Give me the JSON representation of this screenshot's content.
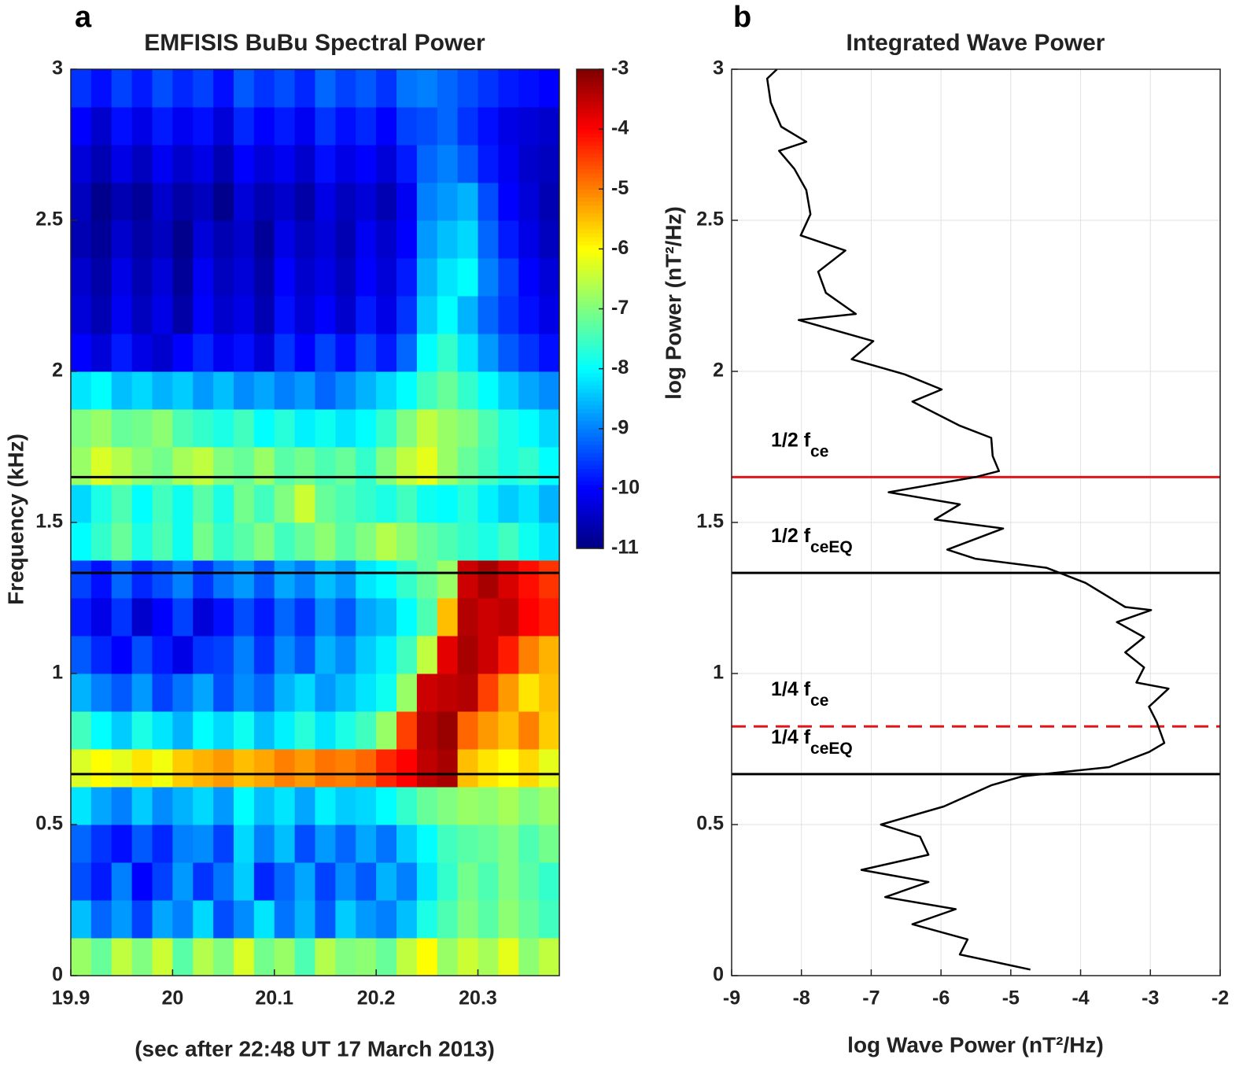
{
  "chart_data": [
    {
      "type": "heatmap",
      "panel_label": "a",
      "title": "EMFISIS BuBu Spectral Power",
      "xlabel": "(sec after 22:48 UT  17 March 2013)",
      "ylabel": "Frequency (kHz)",
      "xlim": [
        19.9,
        20.38
      ],
      "ylim": [
        0,
        3
      ],
      "xticks": [
        19.9,
        20,
        20.1,
        20.2,
        20.3
      ],
      "yticks": [
        0,
        0.5,
        1,
        1.5,
        2,
        2.5,
        3
      ],
      "x": [
        19.91,
        19.93,
        19.95,
        19.97,
        19.99,
        20.01,
        20.03,
        20.05,
        20.07,
        20.09,
        20.11,
        20.13,
        20.15,
        20.17,
        20.19,
        20.21,
        20.23,
        20.25,
        20.27,
        20.29,
        20.31,
        20.33,
        20.35,
        20.37
      ],
      "y": [
        0.0625,
        0.1875,
        0.3125,
        0.4375,
        0.5625,
        0.6875,
        0.8125,
        0.9375,
        1.0625,
        1.1875,
        1.3125,
        1.4375,
        1.5625,
        1.6875,
        1.8125,
        1.9375,
        2.0625,
        2.1875,
        2.3125,
        2.4375,
        2.5625,
        2.6875,
        2.8125,
        2.9375
      ],
      "z": [
        [
          -6.8,
          -7.2,
          -6.5,
          -7.0,
          -6.4,
          -7.3,
          -6.6,
          -7.0,
          -6.3,
          -7.1,
          -6.8,
          -7.4,
          -6.6,
          -7.0,
          -6.9,
          -7.2,
          -6.5,
          -6.0,
          -6.8,
          -6.4,
          -6.7,
          -6.2,
          -6.9,
          -6.5
        ],
        [
          -8.5,
          -9.2,
          -8.8,
          -9.5,
          -8.7,
          -9.0,
          -8.3,
          -9.4,
          -8.9,
          -8.2,
          -9.1,
          -8.6,
          -9.3,
          -8.4,
          -8.8,
          -9.0,
          -8.5,
          -7.8,
          -7.4,
          -7.0,
          -7.3,
          -6.9,
          -7.2,
          -7.5
        ],
        [
          -9.4,
          -9.8,
          -9.0,
          -10.0,
          -9.5,
          -8.8,
          -9.6,
          -9.1,
          -8.4,
          -9.7,
          -9.2,
          -8.7,
          -9.5,
          -8.9,
          -9.3,
          -8.6,
          -9.0,
          -8.2,
          -7.6,
          -7.1,
          -7.4,
          -7.0,
          -7.3,
          -7.6
        ],
        [
          -9.2,
          -9.6,
          -9.9,
          -9.3,
          -9.7,
          -9.0,
          -8.9,
          -9.5,
          -8.3,
          -9.0,
          -8.5,
          -9.4,
          -8.8,
          -9.2,
          -8.7,
          -9.1,
          -8.4,
          -8.0,
          -7.5,
          -7.3,
          -7.2,
          -7.0,
          -7.4,
          -7.1
        ],
        [
          -8.2,
          -8.7,
          -9.0,
          -8.4,
          -8.9,
          -8.6,
          -8.3,
          -8.8,
          -8.0,
          -8.5,
          -8.2,
          -8.7,
          -8.1,
          -8.4,
          -8.3,
          -8.0,
          -7.6,
          -7.2,
          -7.0,
          -6.8,
          -6.9,
          -6.7,
          -7.0,
          -6.8
        ],
        [
          -6.3,
          -6.0,
          -6.2,
          -5.8,
          -6.1,
          -5.6,
          -5.4,
          -5.2,
          -5.5,
          -5.3,
          -5.0,
          -5.2,
          -4.9,
          -5.0,
          -4.8,
          -4.3,
          -4.0,
          -3.5,
          -3.3,
          -5.5,
          -5.8,
          -6.0,
          -5.7,
          -6.2
        ],
        [
          -7.5,
          -8.0,
          -8.4,
          -7.8,
          -8.2,
          -8.6,
          -8.0,
          -8.3,
          -7.9,
          -8.5,
          -8.1,
          -7.7,
          -8.2,
          -7.8,
          -7.5,
          -6.8,
          -4.5,
          -3.4,
          -3.2,
          -4.8,
          -5.2,
          -5.5,
          -5.0,
          -5.6
        ],
        [
          -8.6,
          -9.0,
          -9.3,
          -8.8,
          -9.5,
          -9.1,
          -8.7,
          -9.4,
          -8.9,
          -9.2,
          -8.6,
          -8.3,
          -8.8,
          -8.5,
          -8.2,
          -7.9,
          -6.8,
          -3.6,
          -3.5,
          -3.4,
          -4.5,
          -5.2,
          -5.8,
          -5.5
        ],
        [
          -9.3,
          -9.7,
          -10.0,
          -9.4,
          -9.8,
          -10.2,
          -9.6,
          -9.5,
          -9.0,
          -9.6,
          -8.9,
          -9.3,
          -8.6,
          -8.9,
          -8.4,
          -8.1,
          -7.5,
          -6.5,
          -3.8,
          -3.3,
          -3.6,
          -4.2,
          -5.0,
          -5.4
        ],
        [
          -9.8,
          -10.2,
          -9.6,
          -10.4,
          -10.0,
          -9.5,
          -10.3,
          -9.9,
          -9.4,
          -9.8,
          -9.2,
          -9.6,
          -8.9,
          -9.3,
          -8.7,
          -8.5,
          -8.0,
          -7.4,
          -5.5,
          -3.4,
          -3.6,
          -3.5,
          -4.0,
          -4.2
        ],
        [
          -9.5,
          -9.9,
          -9.2,
          -9.7,
          -9.4,
          -9.0,
          -9.6,
          -9.1,
          -8.8,
          -9.3,
          -8.7,
          -9.0,
          -8.5,
          -8.8,
          -8.2,
          -8.0,
          -7.6,
          -7.2,
          -6.8,
          -3.6,
          -3.3,
          -3.7,
          -4.1,
          -4.4
        ],
        [
          -8.0,
          -7.6,
          -7.2,
          -7.8,
          -7.4,
          -7.9,
          -7.1,
          -7.6,
          -7.3,
          -7.0,
          -7.5,
          -7.2,
          -6.9,
          -7.3,
          -7.0,
          -6.6,
          -6.9,
          -7.2,
          -7.4,
          -7.6,
          -7.8,
          -7.5,
          -7.9,
          -8.2
        ],
        [
          -8.3,
          -7.8,
          -7.4,
          -8.0,
          -7.5,
          -7.9,
          -7.3,
          -7.8,
          -7.1,
          -7.5,
          -7.0,
          -6.4,
          -7.2,
          -7.4,
          -7.6,
          -7.8,
          -7.5,
          -7.9,
          -8.0,
          -7.7,
          -8.1,
          -8.4,
          -8.2,
          -8.6
        ],
        [
          -6.8,
          -6.3,
          -6.6,
          -6.9,
          -7.1,
          -6.7,
          -6.5,
          -7.0,
          -7.2,
          -6.8,
          -7.3,
          -7.1,
          -7.4,
          -7.2,
          -7.6,
          -7.0,
          -6.5,
          -6.2,
          -6.8,
          -7.2,
          -7.5,
          -7.8,
          -7.6,
          -8.0
        ],
        [
          -7.0,
          -6.8,
          -7.2,
          -7.1,
          -6.9,
          -7.4,
          -7.6,
          -7.8,
          -7.5,
          -8.0,
          -7.7,
          -8.1,
          -7.9,
          -8.2,
          -8.0,
          -7.6,
          -7.0,
          -6.5,
          -6.8,
          -7.0,
          -7.4,
          -7.8,
          -8.0,
          -8.3
        ],
        [
          -8.2,
          -8.0,
          -8.5,
          -8.3,
          -8.6,
          -8.4,
          -8.8,
          -8.5,
          -8.9,
          -8.7,
          -9.0,
          -8.8,
          -9.2,
          -8.9,
          -8.6,
          -8.3,
          -8.0,
          -7.5,
          -7.2,
          -7.6,
          -8.0,
          -8.4,
          -8.7,
          -8.9
        ],
        [
          -10.0,
          -10.3,
          -9.8,
          -10.2,
          -10.4,
          -10.0,
          -9.7,
          -10.1,
          -9.9,
          -10.3,
          -9.6,
          -10.0,
          -9.5,
          -9.9,
          -9.4,
          -9.8,
          -9.2,
          -8.0,
          -7.6,
          -8.2,
          -8.8,
          -9.3,
          -9.6,
          -9.9
        ],
        [
          -10.3,
          -10.6,
          -10.1,
          -10.5,
          -10.2,
          -10.7,
          -10.0,
          -10.4,
          -10.2,
          -10.6,
          -9.9,
          -10.3,
          -10.0,
          -10.4,
          -9.8,
          -10.2,
          -9.6,
          -8.4,
          -8.0,
          -8.6,
          -9.2,
          -9.6,
          -9.9,
          -10.2
        ],
        [
          -10.4,
          -10.7,
          -10.2,
          -10.6,
          -10.3,
          -10.8,
          -10.1,
          -10.5,
          -10.3,
          -10.7,
          -10.0,
          -10.4,
          -10.2,
          -10.5,
          -10.0,
          -10.3,
          -9.8,
          -8.6,
          -8.2,
          -8.0,
          -9.0,
          -9.5,
          -10.0,
          -10.3
        ],
        [
          -10.6,
          -10.8,
          -10.4,
          -10.7,
          -10.5,
          -10.9,
          -10.3,
          -10.6,
          -10.4,
          -10.8,
          -10.2,
          -10.5,
          -10.3,
          -10.6,
          -10.1,
          -10.4,
          -10.0,
          -8.8,
          -8.5,
          -8.3,
          -9.2,
          -9.8,
          -10.2,
          -10.5
        ],
        [
          -10.5,
          -10.9,
          -10.6,
          -10.8,
          -10.4,
          -10.7,
          -10.5,
          -10.9,
          -10.3,
          -10.6,
          -10.4,
          -10.7,
          -10.2,
          -10.5,
          -10.3,
          -10.6,
          -10.1,
          -9.0,
          -8.8,
          -8.6,
          -9.4,
          -10.0,
          -10.3,
          -10.6
        ],
        [
          -10.3,
          -10.6,
          -10.2,
          -10.5,
          -10.1,
          -10.4,
          -10.2,
          -10.6,
          -10.0,
          -10.3,
          -10.1,
          -10.4,
          -9.9,
          -10.2,
          -10.0,
          -10.3,
          -9.8,
          -9.2,
          -9.0,
          -9.3,
          -9.8,
          -10.1,
          -10.4,
          -10.5
        ],
        [
          -10.0,
          -10.4,
          -9.9,
          -10.2,
          -9.8,
          -10.1,
          -9.9,
          -10.3,
          -9.7,
          -10.0,
          -9.8,
          -10.1,
          -9.6,
          -9.9,
          -9.7,
          -10.0,
          -9.5,
          -9.4,
          -9.2,
          -9.6,
          -9.9,
          -10.2,
          -10.3,
          -10.4
        ],
        [
          -9.6,
          -9.9,
          -9.5,
          -9.8,
          -9.4,
          -9.7,
          -9.5,
          -9.9,
          -9.3,
          -9.6,
          -9.4,
          -9.7,
          -9.2,
          -9.5,
          -9.3,
          -9.6,
          -9.1,
          -9.0,
          -9.2,
          -9.4,
          -9.6,
          -9.8,
          -9.9,
          -10.0
        ]
      ],
      "colorbar": {
        "colormap": "jet",
        "clim": [
          -11,
          -3
        ],
        "ticks": [
          -3,
          -4,
          -5,
          -6,
          -7,
          -8,
          -9,
          -10,
          -11
        ]
      },
      "hlines": [
        {
          "y": 1.65,
          "color": "#000000"
        },
        {
          "y": 1.333,
          "color": "#000000"
        },
        {
          "y": 0.667,
          "color": "#000000"
        }
      ]
    },
    {
      "type": "line",
      "panel_label": "b",
      "title": "Integrated Wave Power",
      "xlabel": "log Wave Power (nT²/Hz)",
      "ylabel": "log Power (nT²/Hz)",
      "xlim": [
        -9,
        -2
      ],
      "ylim": [
        0,
        3
      ],
      "grid": true,
      "xticks": [
        -9,
        -8,
        -7,
        -6,
        -5,
        -4,
        -3,
        -2
      ],
      "yticks": [
        0,
        0.5,
        1,
        1.5,
        2,
        2.5,
        3
      ],
      "series": [
        {
          "color": "#000000",
          "values": [
            -8.35,
            -8.49,
            -8.44,
            -8.29,
            -7.93,
            -8.32,
            -8.1,
            -7.93,
            -7.87,
            -8.01,
            -7.37,
            -7.76,
            -7.65,
            -7.22,
            -8.04,
            -6.97,
            -7.28,
            -6.52,
            -5.99,
            -6.41,
            -5.73,
            -5.28,
            -5.26,
            -5.17,
            -5.51,
            -6.75,
            -5.73,
            -6.09,
            -5.11,
            -5.91,
            -5.51,
            -4.49,
            -3.93,
            -3.36,
            -2.99,
            -3.48,
            -3.09,
            -3.36,
            -3.09,
            -3.2,
            -2.74,
            -3.02,
            -2.91,
            -2.8,
            -3.02,
            -3.59,
            -4.83,
            -5.28,
            -5.96,
            -6.86,
            -6.3,
            -6.18,
            -7.14,
            -6.18,
            -6.8,
            -5.79,
            -6.41,
            -5.62,
            -5.73,
            -4.72
          ],
          "y": [
            3,
            2.969,
            2.89,
            2.81,
            2.76,
            2.73,
            2.67,
            2.6,
            2.52,
            2.45,
            2.4,
            2.33,
            2.26,
            2.19,
            2.17,
            2.1,
            2.04,
            1.99,
            1.94,
            1.9,
            1.82,
            1.78,
            1.72,
            1.67,
            1.65,
            1.6,
            1.56,
            1.51,
            1.48,
            1.41,
            1.38,
            1.35,
            1.3,
            1.22,
            1.21,
            1.17,
            1.12,
            1.07,
            1.02,
            0.97,
            0.95,
            0.89,
            0.84,
            0.77,
            0.74,
            0.69,
            0.66,
            0.63,
            0.56,
            0.5,
            0.46,
            0.4,
            0.35,
            0.31,
            0.26,
            0.22,
            0.17,
            0.12,
            0.07,
            0.02
          ]
        }
      ],
      "hlines": [
        {
          "y": 1.65,
          "color": "#e0161b",
          "label": {
            "text": "1/2 f",
            "sub": "ce"
          }
        },
        {
          "y": 1.333,
          "color": "#000000",
          "label": {
            "text": "1/2 f",
            "sub": "ceEQ"
          }
        },
        {
          "y": 0.825,
          "color": "#e0161b",
          "dashed": true,
          "label": {
            "text": "1/4 f",
            "sub": "ce"
          }
        },
        {
          "y": 0.667,
          "color": "#000000",
          "label": {
            "text": "1/4 f",
            "sub": "ceEQ"
          }
        }
      ]
    }
  ]
}
